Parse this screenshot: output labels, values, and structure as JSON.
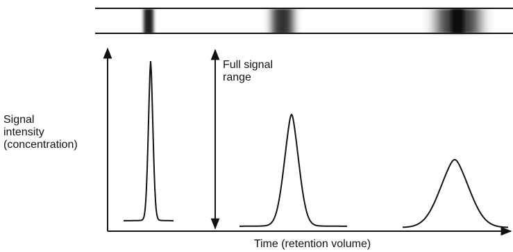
{
  "labels": {
    "range": {
      "lines": [
        "Full signal",
        "range"
      ]
    },
    "y_axis": {
      "lines": [
        "Signal",
        "intensity",
        "(concentration)"
      ]
    },
    "x_axis": "Time (retention volume)"
  }
}
